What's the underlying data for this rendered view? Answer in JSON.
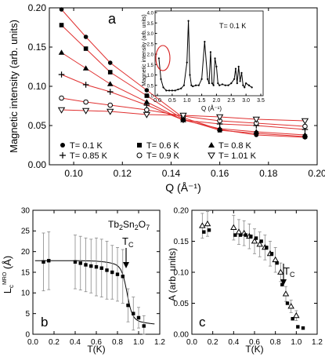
{
  "chart_data": [
    {
      "panel": "a",
      "type": "scatter",
      "panel_label": "a",
      "xlabel": "Q (Å⁻¹)",
      "ylabel": "Magnetic intensity (arb. units)",
      "xlim": [
        0.09,
        0.2
      ],
      "ylim": [
        0.0,
        0.2
      ],
      "xticks": [
        0.1,
        0.12,
        0.14,
        0.16,
        0.18,
        0.2
      ],
      "yticks": [
        0.0,
        0.05,
        0.1,
        0.15,
        0.2
      ],
      "x": [
        0.095,
        0.105,
        0.115,
        0.13,
        0.145,
        0.16,
        0.175,
        0.195
      ],
      "series": [
        {
          "name": "T= 0.1 K",
          "marker": "filled-circle",
          "values": [
            0.198,
            0.163,
            0.13,
            0.095,
            0.06,
            0.045,
            0.038,
            0.035
          ]
        },
        {
          "name": "T= 0.6 K",
          "marker": "filled-square",
          "values": [
            0.178,
            0.148,
            0.118,
            0.088,
            0.058,
            0.044,
            0.04,
            0.036
          ]
        },
        {
          "name": "T= 0.8 K",
          "marker": "filled-triangle",
          "values": [
            0.143,
            0.123,
            0.103,
            0.08,
            0.057,
            0.046,
            0.042,
            0.038
          ]
        },
        {
          "name": "T= 0.85 K",
          "marker": "plus",
          "values": [
            0.115,
            0.102,
            0.093,
            0.076,
            0.057,
            0.052,
            0.05,
            0.045
          ]
        },
        {
          "name": "T= 0.9 K",
          "marker": "open-circle",
          "values": [
            0.085,
            0.08,
            0.076,
            0.07,
            0.062,
            0.056,
            0.053,
            0.049
          ]
        },
        {
          "name": "T= 1.01 K",
          "marker": "open-triangle-down",
          "values": [
            0.07,
            0.069,
            0.068,
            0.064,
            0.063,
            0.061,
            0.058,
            0.056
          ]
        }
      ],
      "inset": {
        "type": "line",
        "annotation": "T= 0.1 K",
        "xlabel": "Q (Å⁻¹)",
        "ylabel": "Magnetic intensity (arb. units)",
        "xlim": [
          0,
          3.5
        ],
        "xticks": [
          0.0,
          0.5,
          1.0,
          1.5,
          2.0,
          2.5,
          3.0,
          3.5
        ],
        "yticks": [
          0.0,
          0.5,
          1.0,
          1.5,
          2.0,
          2.5,
          3.0,
          3.5,
          4.0
        ],
        "ylim": [
          0,
          4.0
        ],
        "x": [
          0.05,
          0.12,
          0.2,
          0.3,
          0.4,
          0.5,
          0.6,
          0.7,
          0.8,
          0.9,
          1.0,
          1.05,
          1.1,
          1.15,
          1.2,
          1.3,
          1.4,
          1.5,
          1.6,
          1.7,
          1.75,
          1.8,
          1.85,
          1.9,
          1.95,
          2.0,
          2.05,
          2.1,
          2.2,
          2.3,
          2.4,
          2.5,
          2.6,
          2.65,
          2.7,
          2.75,
          2.8,
          2.85,
          2.9,
          2.95,
          3.0,
          3.1,
          3.2
        ],
        "values": [
          1.8,
          0.8,
          0.4,
          0.25,
          0.25,
          0.25,
          0.25,
          0.3,
          0.35,
          0.5,
          1.6,
          3.6,
          1.0,
          0.5,
          0.45,
          0.5,
          0.5,
          0.8,
          2.6,
          0.8,
          0.6,
          2.1,
          0.6,
          0.5,
          1.8,
          1.4,
          0.6,
          0.5,
          0.55,
          0.5,
          0.5,
          0.6,
          0.8,
          1.3,
          0.6,
          1.4,
          0.7,
          1.1,
          0.5,
          0.4,
          0.6,
          0.5,
          0.4
        ]
      }
    },
    {
      "panel": "b",
      "type": "scatter",
      "panel_label": "b",
      "annotation": "Tb2Sn2O7",
      "tc_label": "T",
      "tc_subscript": "C",
      "xlabel": "T(K)",
      "ylabel": "L",
      "ylabel_sub": "c",
      "ylabel_sup": "MRO",
      "ylabel_unit": " (Å)",
      "xlim": [
        0,
        1.2
      ],
      "ylim": [
        0,
        30
      ],
      "xticks": [
        0.0,
        0.2,
        0.4,
        0.6,
        0.8,
        1.0,
        1.2
      ],
      "yticks": [
        0,
        5,
        10,
        15,
        20,
        25,
        30
      ],
      "x": [
        0.1,
        0.15,
        0.4,
        0.45,
        0.5,
        0.55,
        0.6,
        0.65,
        0.7,
        0.75,
        0.8,
        0.85,
        0.9,
        0.95,
        1.0,
        1.05
      ],
      "values": [
        17.5,
        17.8,
        17.5,
        17.2,
        16.8,
        16.5,
        16.3,
        16.0,
        15.5,
        15.0,
        14.5,
        14.0,
        7.0,
        5.0,
        4.0,
        2.0
      ],
      "errors": [
        7.0,
        7.0,
        6.5,
        6.5,
        6.5,
        6.5,
        7.0,
        7.0,
        7.0,
        6.5,
        6.5,
        6.5,
        4.0,
        4.0,
        2.5,
        2.5
      ]
    },
    {
      "panel": "c",
      "type": "scatter",
      "panel_label": "c",
      "tc_label": "T",
      "tc_subscript": "C",
      "xlabel": "T(K)",
      "ylabel": "A (arb. units)",
      "xlim": [
        0,
        1.2
      ],
      "ylim": [
        0,
        0.2
      ],
      "xticks": [
        0.0,
        0.2,
        0.4,
        0.6,
        0.8,
        1.0,
        1.2
      ],
      "yticks": [
        0.0,
        0.05,
        0.1,
        0.15,
        0.2
      ],
      "series": [
        {
          "marker": "open-triangle",
          "x": [
            0.1,
            0.15,
            0.4,
            0.45,
            0.5,
            0.55,
            0.6,
            0.65,
            0.7,
            0.75,
            0.8,
            0.85,
            0.9,
            0.95,
            1.0
          ],
          "values": [
            0.175,
            0.178,
            0.172,
            0.165,
            0.163,
            0.158,
            0.15,
            0.145,
            0.14,
            0.13,
            0.12,
            0.1,
            0.065,
            0.045,
            0.03
          ],
          "errors": [
            0.02,
            0.02,
            0.02,
            0.02,
            0.02,
            0.02,
            0.02,
            0.02,
            0.02,
            0.02,
            0.02,
            0.015,
            0.012,
            0.01,
            0.008
          ]
        },
        {
          "marker": "filled-square",
          "x": [
            0.1,
            0.15,
            0.4,
            0.45,
            0.5,
            0.55,
            0.6,
            0.65,
            0.7,
            0.75,
            0.8,
            0.85,
            0.9,
            0.95,
            1.0,
            1.05
          ],
          "values": [
            0.165,
            0.168,
            0.16,
            0.16,
            0.16,
            0.158,
            0.155,
            0.15,
            0.14,
            0.13,
            0.115,
            0.08,
            0.05,
            0.025,
            0.012,
            0.01
          ]
        }
      ]
    }
  ]
}
